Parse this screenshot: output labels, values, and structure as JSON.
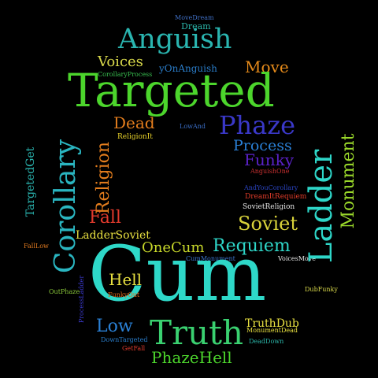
{
  "background": "#000000",
  "words": [
    {
      "text": "MoveDream",
      "color": "#3f6fc4"
    },
    {
      "text": "Dream",
      "color": "#2bb5a8"
    },
    {
      "text": "Anguish",
      "color": "#2ab5b0"
    },
    {
      "text": "Voices",
      "color": "#d8d84a"
    },
    {
      "text": "yOnAnguish",
      "color": "#2a7cc8"
    },
    {
      "text": "Move",
      "color": "#e58a1a"
    },
    {
      "text": "CorollaryProcess",
      "color": "#38c050"
    },
    {
      "text": "Targeted",
      "color": "#4cd52c"
    },
    {
      "text": "Dead",
      "color": "#e37d1d"
    },
    {
      "text": "LowAnd",
      "color": "#3a6dc4"
    },
    {
      "text": "Phaze",
      "color": "#3a38c8"
    },
    {
      "text": "ReligionIt",
      "color": "#e8d22a"
    },
    {
      "text": "Process",
      "color": "#2a7fd5"
    },
    {
      "text": "Funky",
      "color": "#5a22c8"
    },
    {
      "text": "AnguishOne",
      "color": "#c83030"
    },
    {
      "text": "AndYouCorollary",
      "color": "#2b45c4"
    },
    {
      "text": "DreamItRequiem",
      "color": "#e03c2a"
    },
    {
      "text": "SovietReligion",
      "color": "#e6e6e6"
    },
    {
      "text": "Soviet",
      "color": "#d8d23a"
    },
    {
      "text": "Fall",
      "color": "#e03a2c"
    },
    {
      "text": "LadderSoviet",
      "color": "#e8e040"
    },
    {
      "text": "OneCum",
      "color": "#c8d82a"
    },
    {
      "text": "Requiem",
      "color": "#2ed6c8"
    },
    {
      "text": "FallLow",
      "color": "#e07a20"
    },
    {
      "text": "CumMonument",
      "color": "#3a72c8"
    },
    {
      "text": "VoicesMove",
      "color": "#e6e6e6"
    },
    {
      "text": "Cum",
      "color": "#2ed8c8"
    },
    {
      "text": "Hell",
      "color": "#e8e040"
    },
    {
      "text": "OutPhaze",
      "color": "#8ac83a"
    },
    {
      "text": "FunkyOut",
      "color": "#e06a1c"
    },
    {
      "text": "DubFunky",
      "color": "#d8d84a"
    },
    {
      "text": "Low",
      "color": "#2a80d5"
    },
    {
      "text": "TruthDub",
      "color": "#e8e040"
    },
    {
      "text": "MonumentDead",
      "color": "#e8e040"
    },
    {
      "text": "DownTargeted",
      "color": "#2a7cc8"
    },
    {
      "text": "Truth",
      "color": "#3ad070"
    },
    {
      "text": "DeadDown",
      "color": "#2bb5a8"
    },
    {
      "text": "GetFall",
      "color": "#e03a2c"
    },
    {
      "text": "PhazeHell",
      "color": "#4cd52c"
    },
    {
      "text": "TargetedGet",
      "color": "#2ab5b0"
    },
    {
      "text": "Corollary",
      "color": "#2ab5c0"
    },
    {
      "text": "Religion",
      "color": "#e37d1d"
    },
    {
      "text": "ProcessLadder",
      "color": "#3a38c8"
    },
    {
      "text": "Ladder",
      "color": "#2ed6c8"
    },
    {
      "text": "Monument",
      "color": "#9ad82a"
    }
  ]
}
